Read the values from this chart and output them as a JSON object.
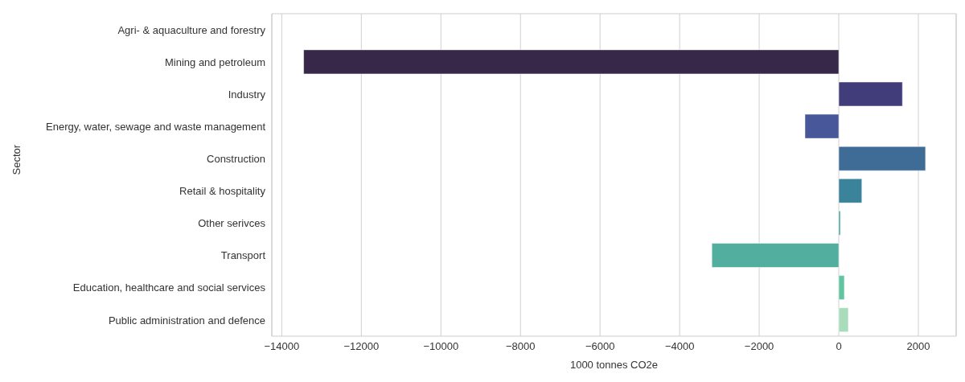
{
  "chart_data": {
    "type": "bar",
    "orientation": "horizontal",
    "xlabel": "1000 tonnes CO2e",
    "ylabel": "Sector",
    "categories": [
      "Agri- & aquaculture and forestry",
      "Mining and petroleum",
      "Industry",
      "Energy, water, sewage and waste management",
      "Construction",
      "Retail & hospitality",
      "Other serivces",
      "Transport",
      "Education, healthcare and social services",
      "Public administration and defence"
    ],
    "values": [
      0,
      -13450,
      1600,
      -850,
      2180,
      580,
      40,
      -3190,
      140,
      240
    ],
    "colors": [
      "#2b1c35",
      "#37284a",
      "#413d7b",
      "#47579a",
      "#3f6c96",
      "#3b839b",
      "#3e9fa0",
      "#52ae9f",
      "#60c5a0",
      "#a9dcbb"
    ],
    "xlim": [
      -14250,
      2950
    ],
    "xticks": [
      -14000,
      -12000,
      -10000,
      -8000,
      -6000,
      -4000,
      -2000,
      0,
      2000
    ],
    "grid": "x"
  }
}
